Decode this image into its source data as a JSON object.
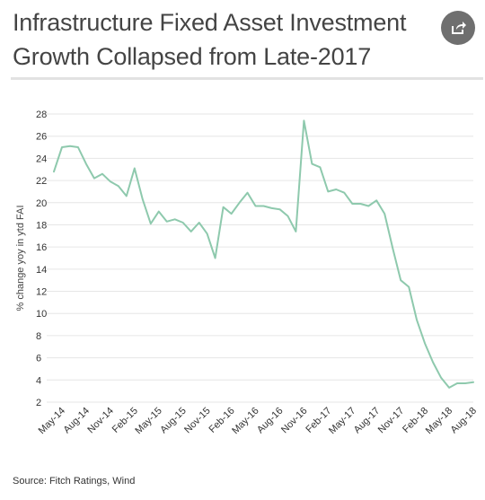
{
  "title_line1": "Infrastructure Fixed Asset Investment",
  "title_line2": "Growth Collapsed from Late-2017",
  "share_icon": "share-icon",
  "source": "Source: Fitch Ratings, Wind",
  "colors": {
    "line": "#8ec9ad",
    "grid": "#e6e6e6",
    "share_bg": "#6f6f6f"
  },
  "chart_data": {
    "type": "line",
    "title": "Infrastructure Fixed Asset Investment Growth Collapsed from Late-2017",
    "xlabel": "",
    "ylabel": "% change yoy in ytd FAI",
    "ylim": [
      2,
      28
    ],
    "yticks": [
      2,
      4,
      6,
      8,
      10,
      12,
      14,
      16,
      18,
      20,
      22,
      24,
      26,
      28
    ],
    "grid": true,
    "legend": "none",
    "x": [
      "Apr-14",
      "May-14",
      "Jun-14",
      "Jul-14",
      "Aug-14",
      "Sep-14",
      "Oct-14",
      "Nov-14",
      "Dec-14",
      "Jan-15",
      "Feb-15",
      "Mar-15",
      "Apr-15",
      "May-15",
      "Jun-15",
      "Jul-15",
      "Aug-15",
      "Sep-15",
      "Oct-15",
      "Nov-15",
      "Dec-15",
      "Jan-16",
      "Feb-16",
      "Mar-16",
      "Apr-16",
      "May-16",
      "Jun-16",
      "Jul-16",
      "Aug-16",
      "Sep-16",
      "Oct-16",
      "Nov-16",
      "Dec-16",
      "Jan-17",
      "Feb-17",
      "Mar-17",
      "Apr-17",
      "May-17",
      "Jun-17",
      "Jul-17",
      "Aug-17",
      "Sep-17",
      "Oct-17",
      "Nov-17",
      "Dec-17",
      "Jan-18",
      "Feb-18",
      "Mar-18",
      "Apr-18",
      "May-18",
      "Jun-18",
      "Jul-18",
      "Aug-18"
    ],
    "x_tick_labels": [
      "May-14",
      "Aug-14",
      "Nov-14",
      "Feb-15",
      "May-15",
      "Aug-15",
      "Nov-15",
      "Feb-16",
      "May-16",
      "Aug-16",
      "Nov-16",
      "Feb-17",
      "May-17",
      "Aug-17",
      "Nov-17",
      "Feb-18",
      "May-18",
      "Aug-18"
    ],
    "values": [
      22.8,
      25.0,
      25.1,
      25.0,
      23.5,
      22.2,
      22.6,
      21.9,
      21.5,
      20.6,
      23.1,
      20.3,
      18.1,
      19.2,
      18.3,
      18.5,
      18.2,
      17.4,
      18.2,
      17.2,
      15.0,
      19.6,
      19.0,
      20.0,
      20.9,
      19.7,
      19.7,
      19.5,
      19.4,
      18.8,
      17.4,
      27.4,
      23.5,
      23.2,
      21.0,
      21.2,
      20.9,
      19.9,
      19.9,
      19.7,
      20.2,
      19.0,
      15.9,
      13.0,
      12.4,
      9.4,
      7.3,
      5.6,
      4.2,
      3.3,
      3.7,
      3.7,
      3.8
    ]
  }
}
